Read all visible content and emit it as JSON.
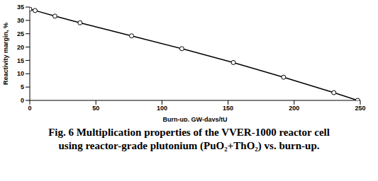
{
  "chart_data": {
    "type": "line",
    "title": "Fig. 6 Multiplication properties of the VVER-1000 reactor cell using reactor-grade plutonium (PuO₂+ThO₂) vs. burn-up.",
    "x_label": "Burn-up, GW-days/tU",
    "y_label": "Reactivity margin, %",
    "x": [
      0,
      4,
      19,
      38,
      77,
      115,
      154,
      192,
      230,
      248
    ],
    "series": [
      {
        "name": "Reactivity margin",
        "color": "#000000",
        "values": [
          34.2,
          33.7,
          31.6,
          29.1,
          24.2,
          19.4,
          14.2,
          8.7,
          2.9,
          0
        ],
        "marker": "circle",
        "line_style": "solid"
      }
    ],
    "xlim": [
      0,
      250
    ],
    "xticks": [
      0,
      50,
      100,
      150,
      200,
      250
    ],
    "ylim": [
      0,
      35
    ],
    "yticks": [
      0,
      5,
      10,
      15,
      20,
      25,
      30,
      35
    ],
    "grid": false
  }
}
